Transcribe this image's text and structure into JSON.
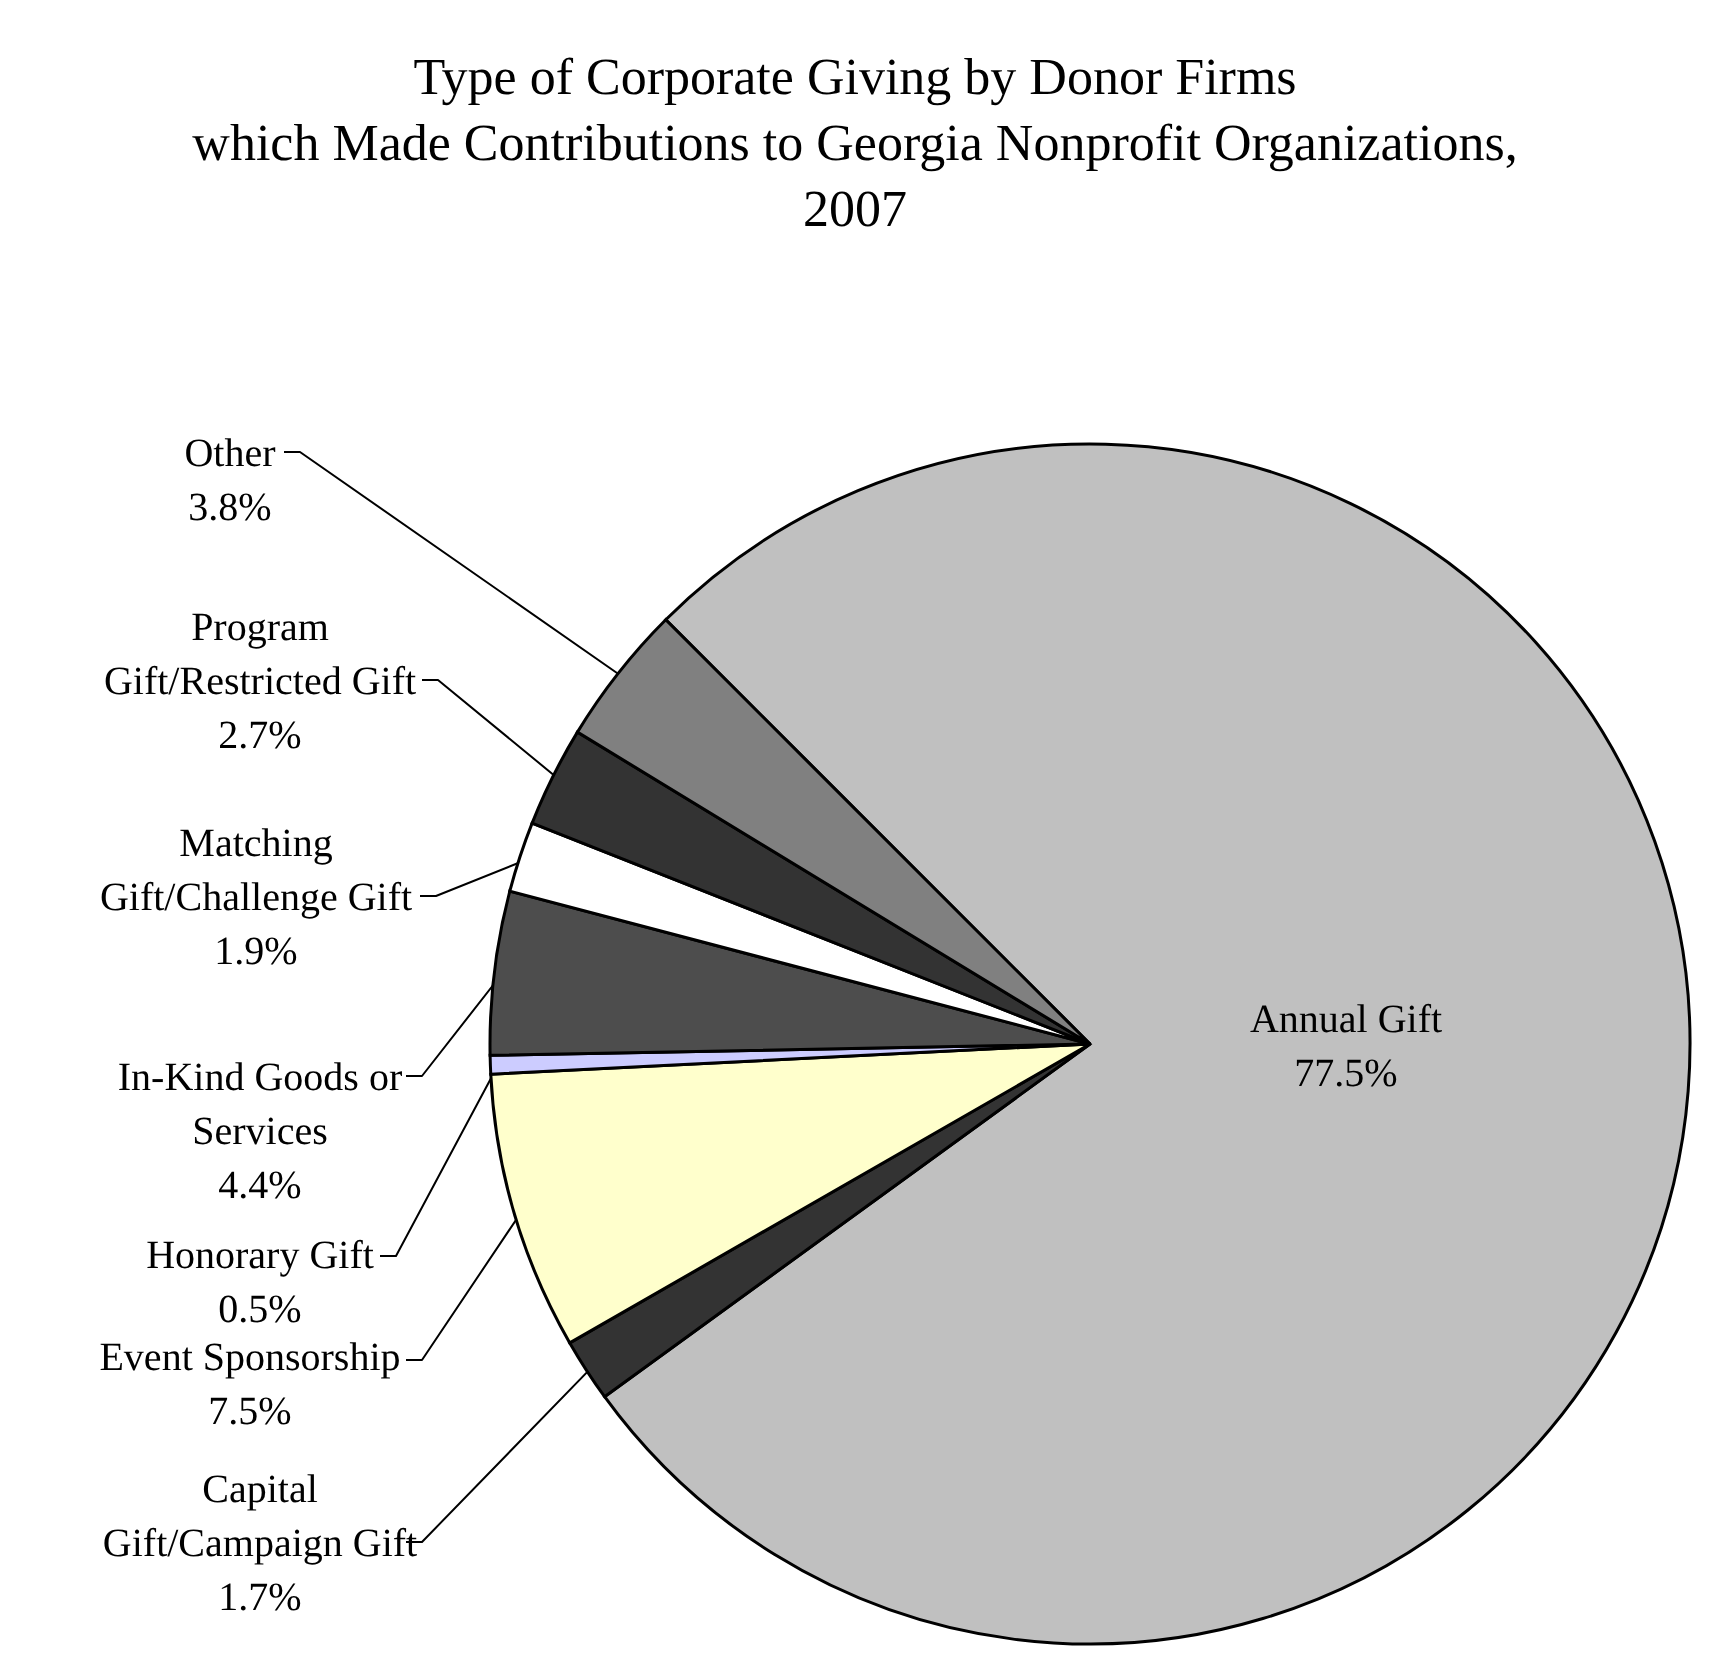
{
  "chart_data": {
    "type": "pie",
    "title": "Type of Corporate Giving by Donor Firms\nwhich Made Contributions to Georgia Nonprofit Organizations,\n2007",
    "categories": [
      "Annual Gift",
      "Capital Gift/Campaign Gift",
      "Event Sponsorship",
      "Honorary Gift",
      "In-Kind Goods or Services",
      "Matching Gift/Challenge Gift",
      "Program Gift/Restricted Gift",
      "Other"
    ],
    "values": [
      77.5,
      1.7,
      7.5,
      0.5,
      4.4,
      1.9,
      2.7,
      3.8
    ],
    "colors": [
      "#c0c0c0",
      "#333333",
      "#ffffcc",
      "#ccccff",
      "#4d4d4d",
      "#ffffff",
      "#333333",
      "#808080"
    ],
    "value_labels": [
      "77.5%",
      "1.7%",
      "7.5%",
      "0.5%",
      "4.4%",
      "1.9%",
      "2.7%",
      "3.8%"
    ],
    "legend": false
  }
}
